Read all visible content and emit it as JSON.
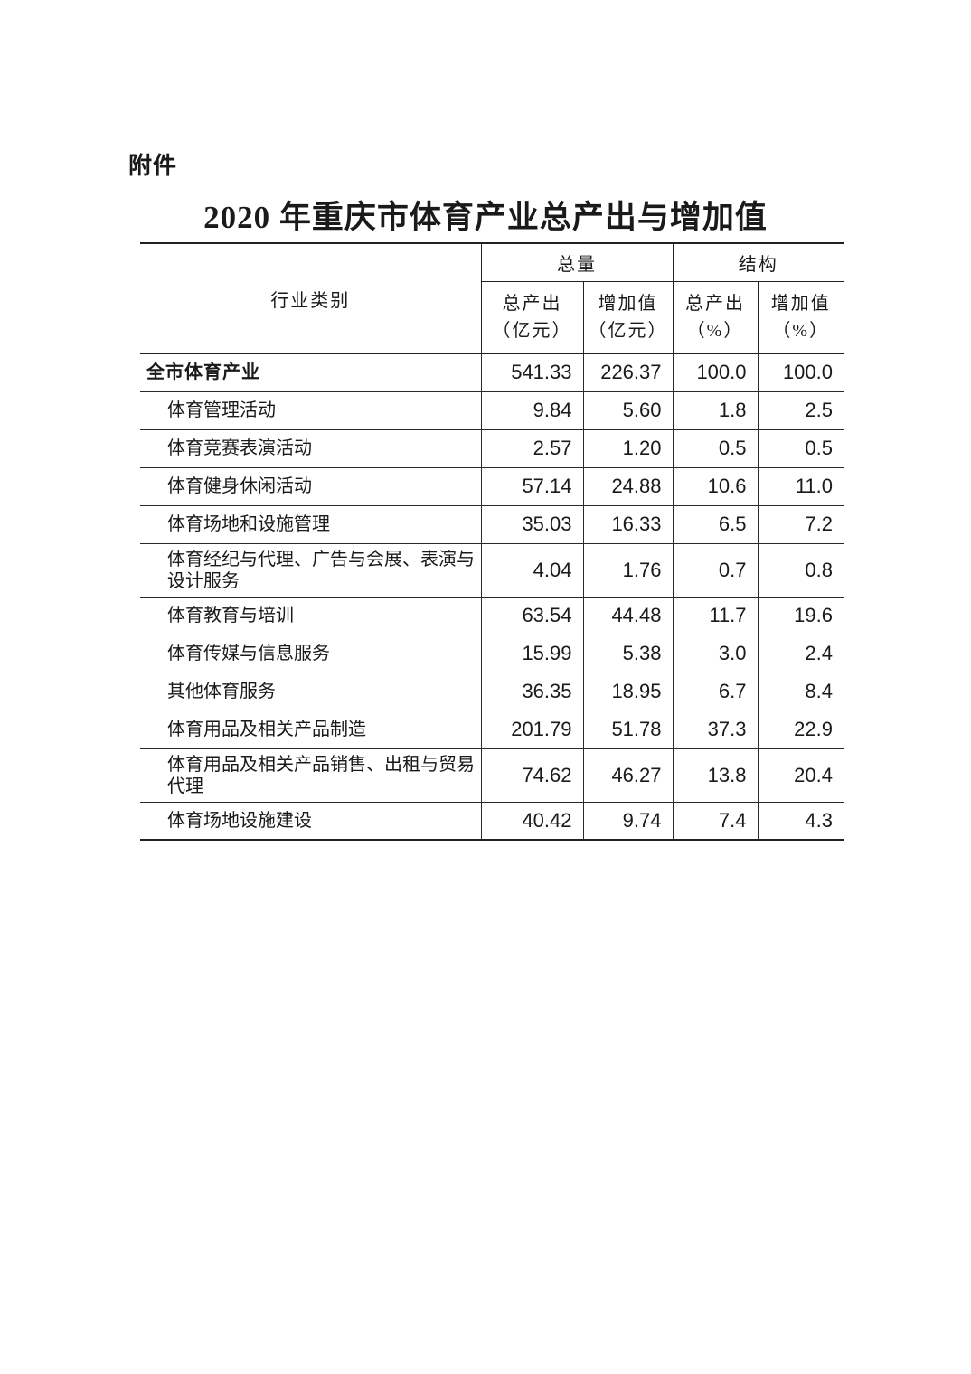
{
  "page": {
    "attachment_label": "附件",
    "title": "2020 年重庆市体育产业总产出与增加值"
  },
  "table": {
    "header": {
      "industry_category": "行业类别",
      "group_total": "总量",
      "group_structure": "结构",
      "sub_columns": [
        {
          "line1": "总产出",
          "line2": "（亿元）"
        },
        {
          "line1": "增加值",
          "line2": "（亿元）"
        },
        {
          "line1": "总产出",
          "line2": "（%）"
        },
        {
          "line1": "增加值",
          "line2": "（%）"
        }
      ]
    },
    "rows": [
      {
        "label": "全市体育产业",
        "bold": true,
        "two_line": false,
        "values": [
          "541.33",
          "226.37",
          "100.0",
          "100.0"
        ]
      },
      {
        "label": "体育管理活动",
        "bold": false,
        "two_line": false,
        "values": [
          "9.84",
          "5.60",
          "1.8",
          "2.5"
        ]
      },
      {
        "label": "体育竞赛表演活动",
        "bold": false,
        "two_line": false,
        "values": [
          "2.57",
          "1.20",
          "0.5",
          "0.5"
        ]
      },
      {
        "label": "体育健身休闲活动",
        "bold": false,
        "two_line": false,
        "values": [
          "57.14",
          "24.88",
          "10.6",
          "11.0"
        ]
      },
      {
        "label": "体育场地和设施管理",
        "bold": false,
        "two_line": false,
        "values": [
          "35.03",
          "16.33",
          "6.5",
          "7.2"
        ]
      },
      {
        "label": "体育经纪与代理、广告与会展、表演与设计服务",
        "bold": false,
        "two_line": true,
        "values": [
          "4.04",
          "1.76",
          "0.7",
          "0.8"
        ]
      },
      {
        "label": "体育教育与培训",
        "bold": false,
        "two_line": false,
        "values": [
          "63.54",
          "44.48",
          "11.7",
          "19.6"
        ]
      },
      {
        "label": "体育传媒与信息服务",
        "bold": false,
        "two_line": false,
        "values": [
          "15.99",
          "5.38",
          "3.0",
          "2.4"
        ]
      },
      {
        "label": "其他体育服务",
        "bold": false,
        "two_line": false,
        "values": [
          "36.35",
          "18.95",
          "6.7",
          "8.4"
        ]
      },
      {
        "label": "体育用品及相关产品制造",
        "bold": false,
        "two_line": false,
        "values": [
          "201.79",
          "51.78",
          "37.3",
          "22.9"
        ]
      },
      {
        "label": "体育用品及相关产品销售、出租与贸易代理",
        "bold": false,
        "two_line": true,
        "values": [
          "74.62",
          "46.27",
          "13.8",
          "20.4"
        ]
      },
      {
        "label": "体育场地设施建设",
        "bold": false,
        "two_line": false,
        "values": [
          "40.42",
          "9.74",
          "7.4",
          "4.3"
        ]
      }
    ]
  }
}
